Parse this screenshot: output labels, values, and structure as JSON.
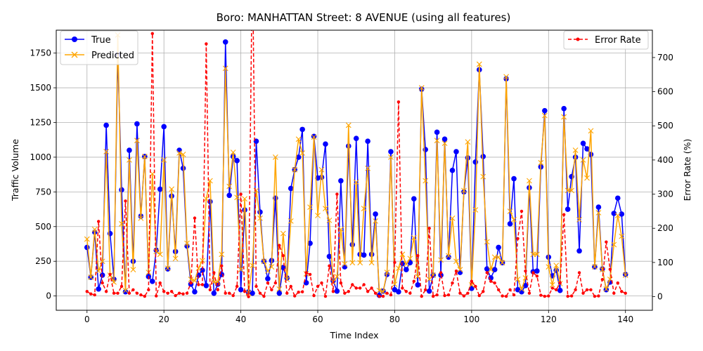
{
  "chart_data": {
    "type": "line",
    "title": "Boro: MANHATTAN Street: 8 AVENUE (using all features)",
    "xlabel": "Time Index",
    "ylabel": "Traffic Volume",
    "y2label": "Error Rate (%)",
    "xlim": [
      -8,
      147
    ],
    "ylim": [
      -103,
      1915
    ],
    "y2lim": [
      -40,
      780
    ],
    "xticks": [
      0,
      20,
      40,
      60,
      80,
      100,
      120,
      140
    ],
    "yticks": [
      0,
      250,
      500,
      750,
      1000,
      1250,
      1500,
      1750
    ],
    "y2ticks": [
      0,
      100,
      200,
      300,
      400,
      500,
      600,
      700
    ],
    "grid": true,
    "legend_left": {
      "position": "upper-left",
      "entries": [
        "True",
        "Predicted"
      ]
    },
    "legend_right": {
      "position": "upper-right",
      "entries": [
        "Error Rate"
      ]
    },
    "colors": {
      "true": "#0000ff",
      "predicted": "#ffa500",
      "error": "#ff0000"
    },
    "series": [
      {
        "name": "True",
        "axis": "left",
        "values": [
          350,
          135,
          460,
          50,
          150,
          1230,
          450,
          120,
          1740,
          765,
          30,
          1050,
          250,
          1240,
          575,
          1005,
          140,
          105,
          330,
          770,
          1220,
          195,
          720,
          320,
          1050,
          920,
          360,
          85,
          30,
          150,
          185,
          75,
          680,
          20,
          85,
          155,
          1830,
          725,
          1005,
          975,
          45,
          620,
          30,
          20,
          1115,
          605,
          250,
          125,
          255,
          705,
          20,
          205,
          130,
          775,
          910,
          1000,
          1200,
          95,
          380,
          1150,
          850,
          855,
          1095,
          285,
          110,
          35,
          830,
          210,
          1080,
          370,
          1135,
          300,
          295,
          1115,
          300,
          590,
          5,
          35,
          155,
          1040,
          45,
          30,
          235,
          190,
          240,
          700,
          80,
          1490,
          1055,
          35,
          150,
          1180,
          150,
          1130,
          280,
          905,
          1040,
          170,
          750,
          995,
          55,
          965,
          1630,
          1005,
          195,
          130,
          190,
          350,
          240,
          1565,
          520,
          845,
          45,
          30,
          75,
          780,
          175,
          180,
          930,
          1335,
          280,
          145,
          185,
          40,
          1350,
          625,
          860,
          1000,
          325,
          1100,
          1060,
          1020,
          210,
          640,
          195,
          45,
          100,
          595,
          705,
          590,
          155
        ]
      },
      {
        "name": "Predicted",
        "axis": "left",
        "values": [
          410,
          135,
          480,
          180,
          250,
          1040,
          150,
          100,
          1880,
          520,
          40,
          980,
          190,
          1120,
          560,
          1005,
          170,
          880,
          320,
          300,
          980,
          200,
          770,
          270,
          1030,
          1020,
          380,
          120,
          110,
          200,
          255,
          700,
          830,
          100,
          100,
          300,
          1640,
          790,
          1035,
          710,
          190,
          700,
          20,
          220,
          760,
          560,
          250,
          180,
          210,
          1000,
          50,
          450,
          120,
          540,
          910,
          1130,
          1030,
          160,
          640,
          1145,
          580,
          910,
          630,
          545,
          100,
          140,
          480,
          230,
          1230,
          240,
          820,
          240,
          630,
          920,
          240,
          540,
          40,
          30,
          170,
          1000,
          85,
          200,
          300,
          230,
          270,
          420,
          140,
          1500,
          830,
          120,
          150,
          1120,
          260,
          1100,
          290,
          560,
          250,
          190,
          760,
          1110,
          80,
          620,
          1670,
          860,
          390,
          190,
          280,
          280,
          240,
          1580,
          610,
          550,
          120,
          50,
          130,
          830,
          300,
          300,
          960,
          1300,
          210,
          80,
          220,
          90,
          1290,
          760,
          760,
          1050,
          550,
          980,
          850,
          1190,
          210,
          600,
          190,
          50,
          120,
          370,
          580,
          430,
          150
        ]
      },
      {
        "name": "Error Rate",
        "axis": "right",
        "values": [
          15,
          8,
          5,
          220,
          40,
          15,
          65,
          10,
          10,
          30,
          280,
          10,
          20,
          10,
          5,
          1,
          20,
          770,
          2,
          40,
          15,
          10,
          15,
          3,
          10,
          8,
          10,
          40,
          230,
          35,
          35,
          740,
          20,
          70,
          20,
          90,
          10,
          10,
          3,
          30,
          300,
          15,
          0,
          1000,
          30,
          10,
          1,
          40,
          20,
          40,
          150,
          120,
          10,
          30,
          2,
          13,
          14,
          70,
          65,
          3,
          30,
          40,
          1,
          90,
          15,
          300,
          40,
          10,
          15,
          35,
          25,
          25,
          35,
          15,
          25,
          10,
          1,
          1,
          10,
          5,
          100,
          570,
          25,
          15,
          10,
          45,
          120,
          1,
          20,
          200,
          1,
          5,
          70,
          3,
          5,
          40,
          75,
          10,
          2,
          10,
          45,
          30,
          3,
          15,
          70,
          45,
          40,
          20,
          2,
          1,
          20,
          5,
          170,
          250,
          75,
          10,
          70,
          60,
          4,
          1,
          2,
          25,
          20,
          40,
          240,
          1,
          2,
          20,
          70,
          10,
          20,
          20,
          1,
          2,
          50,
          160,
          80,
          10,
          40,
          15,
          10
        ]
      }
    ]
  }
}
